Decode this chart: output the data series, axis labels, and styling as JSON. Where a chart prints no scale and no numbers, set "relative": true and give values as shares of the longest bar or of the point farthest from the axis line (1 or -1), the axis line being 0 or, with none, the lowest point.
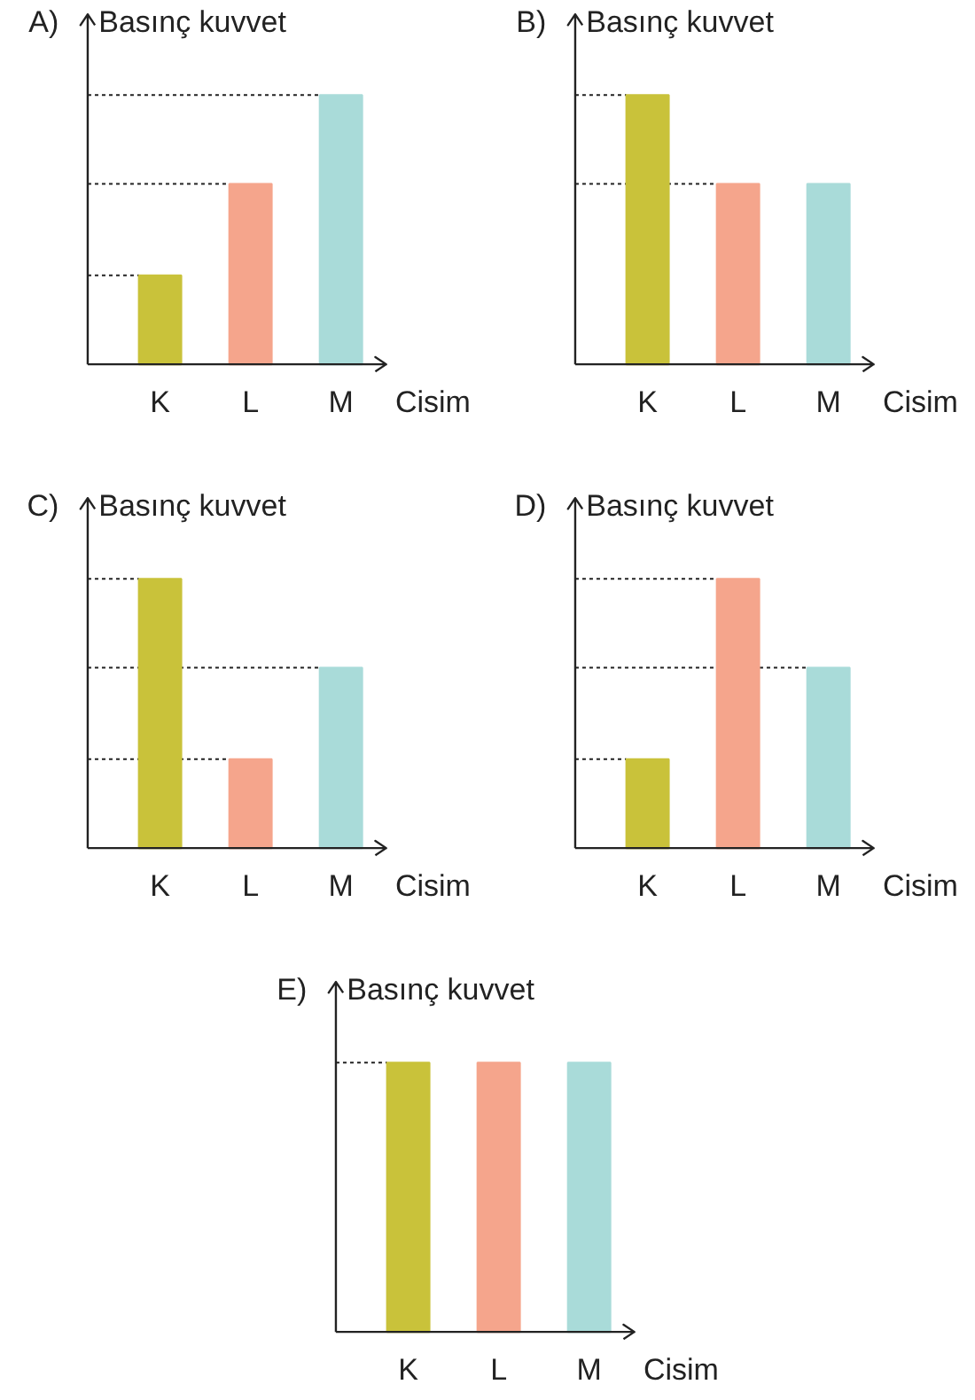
{
  "chart_data": [
    {
      "type": "bar",
      "title": "A)",
      "ylabel": "Basınç kuvvet",
      "xlabel": "Cisim",
      "categories": [
        "K",
        "L",
        "M"
      ],
      "values": [
        0.33,
        0.67,
        1
      ],
      "colors": [
        "#c9c23a",
        "#f5a58c",
        "#a9dbd9"
      ],
      "relative": true,
      "ref_lines": [
        {
          "axis": "y",
          "value": 0.33,
          "line_style": "dotted"
        },
        {
          "axis": "y",
          "value": 0.67,
          "line_style": "dotted"
        },
        {
          "axis": "y",
          "value": 1,
          "line_style": "dotted"
        }
      ]
    },
    {
      "type": "bar",
      "title": "B)",
      "ylabel": "Basınç kuvvet",
      "xlabel": "Cisim",
      "categories": [
        "K",
        "L",
        "M"
      ],
      "values": [
        1,
        0.67,
        0.67
      ],
      "colors": [
        "#c9c23a",
        "#f5a58c",
        "#a9dbd9"
      ],
      "relative": true,
      "ref_lines": [
        {
          "axis": "y",
          "value": 0.67,
          "line_style": "dotted"
        },
        {
          "axis": "y",
          "value": 1,
          "line_style": "dotted"
        }
      ]
    },
    {
      "type": "bar",
      "title": "C)",
      "ylabel": "Basınç kuvvet",
      "xlabel": "Cisim",
      "categories": [
        "K",
        "L",
        "M"
      ],
      "values": [
        1,
        0.33,
        0.67
      ],
      "colors": [
        "#c9c23a",
        "#f5a58c",
        "#a9dbd9"
      ],
      "relative": true,
      "ref_lines": [
        {
          "axis": "y",
          "value": 0.33,
          "line_style": "dotted"
        },
        {
          "axis": "y",
          "value": 0.67,
          "line_style": "dotted"
        },
        {
          "axis": "y",
          "value": 1,
          "line_style": "dotted"
        }
      ]
    },
    {
      "type": "bar",
      "title": "D)",
      "ylabel": "Basınç kuvvet",
      "xlabel": "Cisim",
      "categories": [
        "K",
        "L",
        "M"
      ],
      "values": [
        0.33,
        1,
        0.67
      ],
      "colors": [
        "#c9c23a",
        "#f5a58c",
        "#a9dbd9"
      ],
      "relative": true,
      "ref_lines": [
        {
          "axis": "y",
          "value": 0.33,
          "line_style": "dotted"
        },
        {
          "axis": "y",
          "value": 0.67,
          "line_style": "dotted"
        },
        {
          "axis": "y",
          "value": 1,
          "line_style": "dotted"
        }
      ]
    },
    {
      "type": "bar",
      "title": "E)",
      "ylabel": "Basınç kuvvet",
      "xlabel": "Cisim",
      "categories": [
        "K",
        "L",
        "M"
      ],
      "values": [
        1,
        1,
        1
      ],
      "colors": [
        "#c9c23a",
        "#f5a58c",
        "#a9dbd9"
      ],
      "relative": true,
      "ref_lines": [
        {
          "axis": "y",
          "value": 1,
          "line_style": "dotted"
        }
      ]
    }
  ]
}
